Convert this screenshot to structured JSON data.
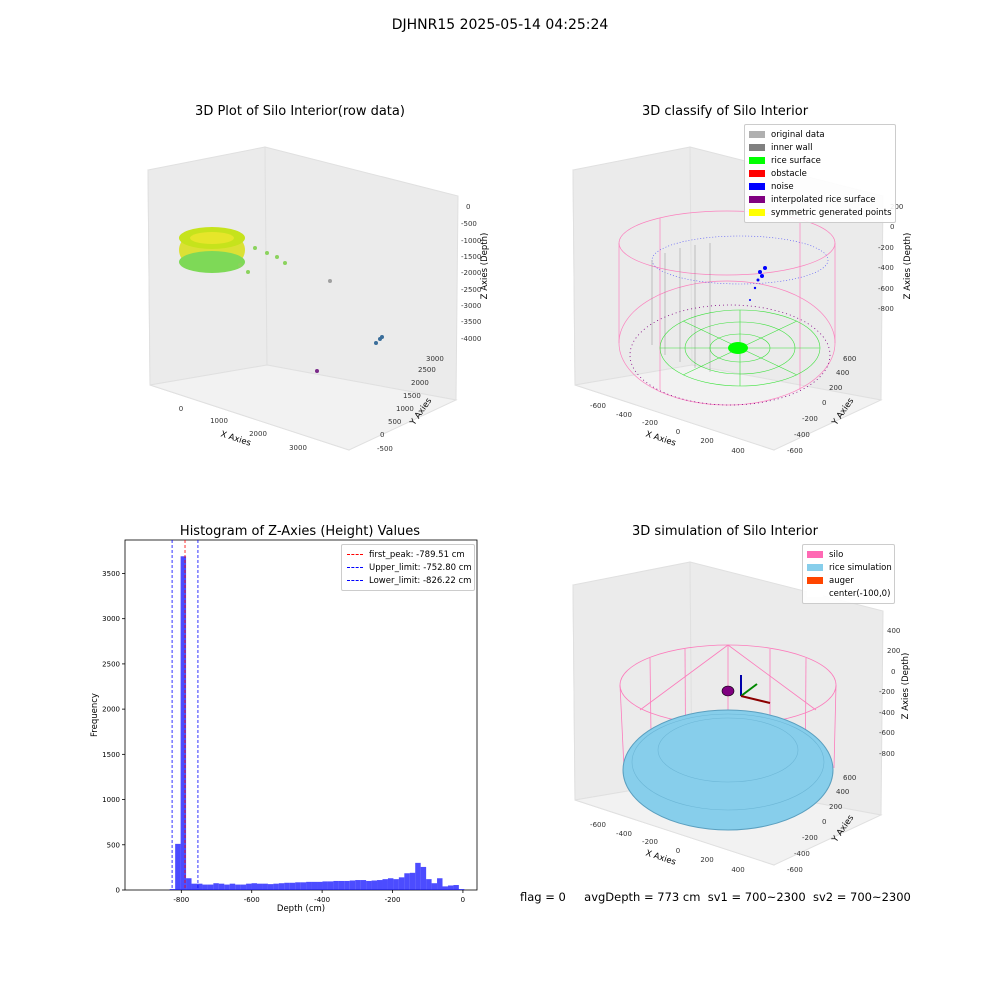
{
  "suptitle": "DJHNR15 2025-05-14 04:25:24",
  "panels": {
    "raw": {
      "title": "3D Plot of Silo Interior(row data)",
      "xlabel": "X Axies",
      "ylabel": "Y Axies",
      "zlabel": "Z Axies (Depth)",
      "xticks": [
        "0",
        "1000",
        "2000",
        "3000"
      ],
      "yticks": [
        "-500",
        "0",
        "500",
        "1000",
        "1500",
        "2000",
        "2500",
        "3000"
      ],
      "zticks": [
        "0",
        "-500",
        "-1000",
        "-1500",
        "-2000",
        "-2500",
        "-3000",
        "-3500",
        "-4000"
      ]
    },
    "classify": {
      "title": "3D classify of Silo Interior",
      "xlabel": "X Axies",
      "ylabel": "Y Axies",
      "zlabel": "Z Axies (Depth)",
      "xticks": [
        "-600",
        "-400",
        "-200",
        "0",
        "200",
        "400"
      ],
      "yticks": [
        "-600",
        "-400",
        "-200",
        "0",
        "200",
        "400",
        "600"
      ],
      "zticks": [
        "200",
        "0",
        "-200",
        "-400",
        "-600",
        "-800"
      ],
      "legend": [
        {
          "label": "original data",
          "color": "#b0b0b0"
        },
        {
          "label": "inner wall",
          "color": "#808080"
        },
        {
          "label": "rice surface",
          "color": "#00ff00"
        },
        {
          "label": "obstacle",
          "color": "#ff0000"
        },
        {
          "label": "noise",
          "color": "#0000ff"
        },
        {
          "label": "interpolated rice surface",
          "color": "#800080"
        },
        {
          "label": "symmetric generated points",
          "color": "#ffff00"
        }
      ]
    },
    "histogram": {
      "title": "Histogram of Z-Axies (Height) Values",
      "xlabel": "Depth (cm)",
      "ylabel": "Frequency",
      "xticks": [
        "-800",
        "-600",
        "-400",
        "-200",
        "0"
      ],
      "yticks": [
        "0",
        "500",
        "1000",
        "1500",
        "2000",
        "2500",
        "3000",
        "3500"
      ],
      "legend": [
        {
          "label": "first_peak: -789.51 cm",
          "color": "#ff0000"
        },
        {
          "label": "Upper_limit: -752.80 cm",
          "color": "#0000ff"
        },
        {
          "label": "Lower_limit: -826.22 cm",
          "color": "#0000ff"
        }
      ]
    },
    "simulation": {
      "title": "3D simulation of Silo Interior",
      "xlabel": "X Axies",
      "ylabel": "Y Axies",
      "zlabel": "Z Axies (Depth)",
      "xticks": [
        "-600",
        "-400",
        "-200",
        "0",
        "200",
        "400"
      ],
      "yticks": [
        "-600",
        "-400",
        "-200",
        "0",
        "200",
        "400",
        "600"
      ],
      "zticks": [
        "400",
        "200",
        "0",
        "-200",
        "-400",
        "-600",
        "-800"
      ],
      "legend": [
        {
          "label": "silo",
          "color": "#ff69b4"
        },
        {
          "label": "rice simulation",
          "color": "#87ceeb"
        },
        {
          "label": "auger",
          "color": "#ff4500"
        },
        {
          "label": "center(-100,0)",
          "color": "#ffffff"
        }
      ]
    }
  },
  "status": {
    "flag": "flag = 0",
    "avg_depth": "avgDepth = 773 cm",
    "sv1": "sv1 = 700~2300",
    "sv2": "sv2 = 700~2300"
  },
  "chart_data": [
    {
      "type": "bar",
      "title": "Histogram of Z-Axies (Height) Values",
      "xlabel": "Depth (cm)",
      "ylabel": "Frequency",
      "xlim": [
        -960,
        40
      ],
      "ylim": [
        0,
        3870
      ],
      "bin_width": 15.5,
      "bin_starts": [
        -833,
        -817.5,
        -802,
        -786.5,
        -771,
        -755.5,
        -740,
        -724.5,
        -709,
        -693.5,
        -678,
        -662.5,
        -647,
        -631.5,
        -616,
        -600.5,
        -585,
        -569.5,
        -554,
        -538.5,
        -523,
        -507.5,
        -492,
        -476.5,
        -461,
        -445.5,
        -430,
        -414.5,
        -399,
        -383.5,
        -368,
        -352.5,
        -337,
        -321.5,
        -306,
        -290.5,
        -275,
        -259.5,
        -244,
        -228.5,
        -213,
        -197.5,
        -182,
        -166.5,
        -151,
        -135.5,
        -120,
        -104.5,
        -89,
        -73.5,
        -58,
        -42.5,
        -27,
        -11.5
      ],
      "values": [
        10,
        510,
        3690,
        130,
        70,
        70,
        60,
        60,
        75,
        70,
        60,
        70,
        60,
        60,
        70,
        75,
        70,
        70,
        65,
        70,
        75,
        80,
        80,
        85,
        85,
        90,
        90,
        90,
        95,
        95,
        100,
        100,
        100,
        105,
        110,
        110,
        100,
        105,
        110,
        120,
        130,
        120,
        140,
        185,
        190,
        300,
        255,
        120,
        75,
        130,
        40,
        50,
        55,
        10
      ],
      "color": "#0000ff",
      "vlines": [
        {
          "name": "first_peak: -789.51 cm",
          "x": -789.51,
          "color": "#ff0000"
        },
        {
          "name": "Upper_limit: -752.80 cm",
          "x": -752.8,
          "color": "#0000ff"
        },
        {
          "name": "Lower_limit: -826.22 cm",
          "x": -826.22,
          "color": "#0000ff"
        }
      ]
    }
  ]
}
